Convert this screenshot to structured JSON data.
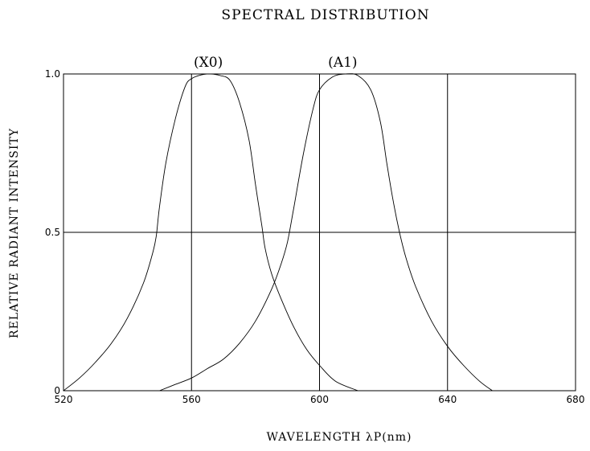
{
  "chart_data": {
    "type": "line",
    "title": "SPECTRAL DISTRIBUTION",
    "xlabel": "WAVELENGTH λP(nm)",
    "ylabel": "RELATIVE RADIANT INTENSITY",
    "xlim": [
      520,
      680
    ],
    "ylim": [
      0,
      1.0
    ],
    "xticks": [
      520,
      560,
      600,
      640,
      680
    ],
    "yticks": [
      {
        "value": 0,
        "label": "0"
      },
      {
        "value": 0.5,
        "label": "0.5"
      },
      {
        "value": 1.0,
        "label": "1.0"
      }
    ],
    "grid": true,
    "series": [
      {
        "name": "(X0)",
        "x": [
          520,
          525,
          530,
          535,
          540,
          545,
          548,
          549,
          550,
          552,
          555,
          558,
          560,
          563,
          566,
          569,
          572,
          575,
          578,
          580,
          582,
          583,
          585,
          588,
          592,
          596,
          600,
          605,
          612
        ],
        "y": [
          0.0,
          0.04,
          0.09,
          0.15,
          0.23,
          0.34,
          0.44,
          0.49,
          0.58,
          0.72,
          0.86,
          0.96,
          0.985,
          0.997,
          1.0,
          0.995,
          0.98,
          0.91,
          0.79,
          0.65,
          0.52,
          0.45,
          0.37,
          0.29,
          0.2,
          0.13,
          0.08,
          0.03,
          0.0
        ]
      },
      {
        "name": "(A1)",
        "x": [
          550,
          555,
          560,
          565,
          570,
          575,
          580,
          585,
          588,
          590,
          592,
          595,
          598,
          600,
          604,
          608,
          612,
          616,
          619,
          621,
          623,
          625,
          627,
          630,
          635,
          640,
          645,
          650,
          654
        ],
        "y": [
          0.0,
          0.02,
          0.04,
          0.07,
          0.1,
          0.15,
          0.22,
          0.32,
          0.4,
          0.47,
          0.58,
          0.75,
          0.89,
          0.95,
          0.99,
          1.0,
          0.995,
          0.95,
          0.85,
          0.72,
          0.6,
          0.5,
          0.42,
          0.33,
          0.22,
          0.14,
          0.08,
          0.03,
          0.0
        ]
      }
    ]
  }
}
